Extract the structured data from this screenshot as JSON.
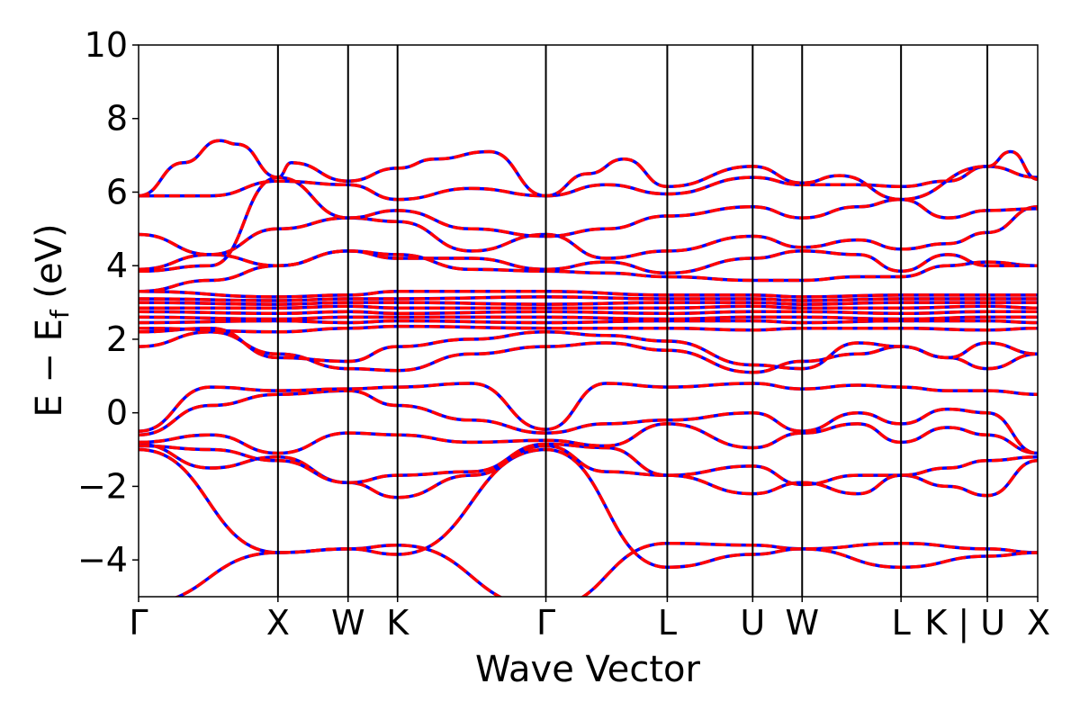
{
  "chart_data": {
    "type": "line",
    "title": "",
    "xlabel": "Wave Vector",
    "ylabel_main": "E − E",
    "ylabel_sub": "f",
    "ylabel_unit": " (eV)",
    "ylim": [
      -5,
      10
    ],
    "yticks": [
      "−4",
      "−2",
      "0",
      "2",
      "4",
      "6",
      "8",
      "10"
    ],
    "ytick_values": [
      -4,
      -2,
      0,
      2,
      4,
      6,
      8,
      10
    ],
    "xlim": [
      0,
      1
    ],
    "kpoints": [
      {
        "label": "Γ",
        "x": 0.0
      },
      {
        "label": "X",
        "x": 0.155
      },
      {
        "label": "W",
        "x": 0.233
      },
      {
        "label": "K",
        "x": 0.288
      },
      {
        "label": "Γ",
        "x": 0.453
      },
      {
        "label": "L",
        "x": 0.588
      },
      {
        "label": "U",
        "x": 0.683
      },
      {
        "label": "W",
        "x": 0.738
      },
      {
        "label": "L",
        "x": 0.848
      },
      {
        "label": "K | U",
        "x": 0.944
      },
      {
        "label": "X",
        "x": 1.0
      }
    ],
    "series_colors": {
      "dft": "#0000ff",
      "wannier": "#ff0000"
    },
    "bands": [
      {
        "x": [
          0,
          0.155,
          0.233,
          0.288,
          0.453,
          0.588,
          0.683,
          0.738,
          0.848,
          0.944,
          1.0
        ],
        "y": [
          -5.2,
          -3.8,
          -3.7,
          -3.6,
          -5.3,
          -3.55,
          -3.6,
          -3.7,
          -3.55,
          -3.7,
          -3.8
        ]
      },
      {
        "x": [
          0,
          0.155,
          0.233,
          0.288,
          0.453,
          0.588,
          0.683,
          0.738,
          0.848,
          0.944,
          1.0
        ],
        "y": [
          -1.0,
          -3.8,
          -3.7,
          -3.85,
          -1.0,
          -4.2,
          -3.85,
          -3.7,
          -4.2,
          -3.9,
          -3.8
        ]
      },
      {
        "x": [
          0,
          0.08,
          0.155,
          0.233,
          0.288,
          0.37,
          0.453,
          0.52,
          0.588,
          0.683,
          0.738,
          0.8,
          0.848,
          0.9,
          0.944,
          1.0
        ],
        "y": [
          -0.85,
          -1.5,
          -1.2,
          -1.9,
          -2.3,
          -1.7,
          -0.9,
          -1.6,
          -1.7,
          -1.45,
          -1.95,
          -1.7,
          -1.7,
          -2.0,
          -2.25,
          -1.3
        ]
      },
      {
        "x": [
          0,
          0.08,
          0.155,
          0.233,
          0.288,
          0.37,
          0.453,
          0.52,
          0.588,
          0.683,
          0.738,
          0.8,
          0.848,
          0.9,
          0.944,
          1.0
        ],
        "y": [
          -0.9,
          -1.0,
          -1.3,
          -1.9,
          -1.7,
          -1.6,
          -0.85,
          -0.95,
          -1.7,
          -2.2,
          -1.9,
          -2.2,
          -1.7,
          -1.5,
          -1.3,
          -1.2
        ]
      },
      {
        "x": [
          0,
          0.08,
          0.155,
          0.233,
          0.288,
          0.37,
          0.453,
          0.52,
          0.588,
          0.683,
          0.738,
          0.8,
          0.848,
          0.9,
          0.944,
          1.0
        ],
        "y": [
          -0.8,
          -0.6,
          -1.1,
          -0.55,
          -0.6,
          -0.8,
          -0.75,
          -0.9,
          -0.3,
          -0.95,
          -0.55,
          -0.3,
          -0.8,
          -0.4,
          -0.6,
          -1.1
        ]
      },
      {
        "x": [
          0,
          0.08,
          0.155,
          0.233,
          0.288,
          0.37,
          0.453,
          0.52,
          0.588,
          0.683,
          0.738,
          0.8,
          0.848,
          0.9,
          0.944,
          1.0
        ],
        "y": [
          -0.6,
          0.2,
          0.5,
          0.6,
          0.2,
          -0.2,
          -0.55,
          -0.3,
          -0.2,
          0.0,
          -0.5,
          0.0,
          -0.3,
          0.1,
          0.0,
          -1.1
        ]
      },
      {
        "x": [
          0,
          0.08,
          0.155,
          0.233,
          0.288,
          0.37,
          0.453,
          0.52,
          0.588,
          0.683,
          0.738,
          0.8,
          0.848,
          0.9,
          0.944,
          1.0
        ],
        "y": [
          -0.5,
          0.7,
          0.6,
          0.65,
          0.7,
          0.8,
          -0.45,
          0.8,
          0.7,
          0.8,
          0.65,
          0.75,
          0.7,
          0.6,
          0.6,
          0.5
        ]
      },
      {
        "x": [
          0,
          0.08,
          0.155,
          0.233,
          0.288,
          0.37,
          0.453,
          0.52,
          0.588,
          0.683,
          0.738,
          0.8,
          0.848,
          0.9,
          0.944,
          1.0
        ],
        "y": [
          1.8,
          2.2,
          1.6,
          1.2,
          1.15,
          1.6,
          1.8,
          1.9,
          1.7,
          1.1,
          1.4,
          1.6,
          1.8,
          1.5,
          1.2,
          1.6
        ]
      },
      {
        "x": [
          0,
          0.08,
          0.155,
          0.233,
          0.288,
          0.37,
          0.453,
          0.52,
          0.588,
          0.683,
          0.738,
          0.8,
          0.848,
          0.9,
          0.944,
          1.0
        ],
        "y": [
          2.2,
          2.3,
          1.5,
          1.4,
          1.8,
          2.0,
          2.2,
          2.1,
          1.95,
          1.3,
          1.2,
          1.9,
          1.8,
          1.5,
          1.9,
          1.6
        ]
      },
      {
        "x": [
          0,
          0.155,
          0.233,
          0.288,
          0.453,
          0.588,
          0.683,
          0.738,
          0.848,
          0.944,
          1.0
        ],
        "y": [
          2.3,
          2.2,
          2.3,
          2.35,
          2.3,
          2.3,
          2.25,
          2.3,
          2.3,
          2.25,
          2.3
        ]
      },
      {
        "x": [
          0,
          0.155,
          0.233,
          0.288,
          0.453,
          0.588,
          0.683,
          0.738,
          0.848,
          0.944,
          1.0
        ],
        "y": [
          2.45,
          2.5,
          2.45,
          2.5,
          2.45,
          2.5,
          2.5,
          2.45,
          2.5,
          2.5,
          2.45
        ]
      },
      {
        "x": [
          0,
          0.155,
          0.233,
          0.288,
          0.453,
          0.588,
          0.683,
          0.738,
          0.848,
          0.944,
          1.0
        ],
        "y": [
          2.6,
          2.55,
          2.6,
          2.6,
          2.6,
          2.55,
          2.6,
          2.6,
          2.55,
          2.6,
          2.6
        ]
      },
      {
        "x": [
          0,
          0.155,
          0.233,
          0.288,
          0.453,
          0.588,
          0.683,
          0.738,
          0.848,
          0.944,
          1.0
        ],
        "y": [
          2.75,
          2.7,
          2.75,
          2.7,
          2.75,
          2.7,
          2.75,
          2.75,
          2.7,
          2.75,
          2.75
        ]
      },
      {
        "x": [
          0,
          0.155,
          0.233,
          0.288,
          0.453,
          0.588,
          0.683,
          0.738,
          0.848,
          0.944,
          1.0
        ],
        "y": [
          2.85,
          2.85,
          2.9,
          2.85,
          2.85,
          2.85,
          2.9,
          2.85,
          2.85,
          2.9,
          2.85
        ]
      },
      {
        "x": [
          0,
          0.155,
          0.233,
          0.288,
          0.453,
          0.588,
          0.683,
          0.738,
          0.848,
          0.944,
          1.0
        ],
        "y": [
          3.0,
          2.95,
          3.0,
          3.0,
          2.95,
          3.0,
          3.0,
          2.95,
          3.0,
          3.0,
          3.0
        ]
      },
      {
        "x": [
          0,
          0.155,
          0.233,
          0.288,
          0.453,
          0.588,
          0.683,
          0.738,
          0.848,
          0.944,
          1.0
        ],
        "y": [
          3.1,
          3.05,
          3.1,
          3.1,
          3.15,
          3.1,
          3.1,
          3.05,
          3.1,
          3.1,
          3.1
        ]
      },
      {
        "x": [
          0,
          0.155,
          0.233,
          0.288,
          0.453,
          0.588,
          0.683,
          0.738,
          0.848,
          0.944,
          1.0
        ],
        "y": [
          3.3,
          3.15,
          3.2,
          3.3,
          3.3,
          3.2,
          3.2,
          3.15,
          3.2,
          3.2,
          3.2
        ]
      },
      {
        "x": [
          0,
          0.08,
          0.155,
          0.233,
          0.288,
          0.37,
          0.453,
          0.52,
          0.588,
          0.683,
          0.738,
          0.8,
          0.848,
          0.9,
          0.944,
          1.0
        ],
        "y": [
          3.3,
          3.6,
          4.0,
          4.4,
          4.3,
          3.9,
          3.85,
          3.8,
          3.7,
          3.6,
          3.6,
          3.7,
          3.7,
          4.0,
          4.1,
          4.0
        ]
      },
      {
        "x": [
          0,
          0.08,
          0.155,
          0.233,
          0.288,
          0.37,
          0.453,
          0.52,
          0.588,
          0.683,
          0.738,
          0.8,
          0.848,
          0.9,
          0.944,
          1.0
        ],
        "y": [
          3.9,
          4.3,
          4.0,
          4.4,
          4.2,
          4.2,
          3.9,
          4.1,
          3.8,
          4.2,
          4.4,
          4.3,
          3.85,
          4.3,
          4.0,
          4.0
        ]
      },
      {
        "x": [
          0,
          0.08,
          0.155,
          0.233,
          0.288,
          0.37,
          0.453,
          0.52,
          0.588,
          0.683,
          0.738,
          0.8,
          0.848,
          0.9,
          0.944,
          1.0
        ],
        "y": [
          4.85,
          4.3,
          5.0,
          5.3,
          5.2,
          4.4,
          4.85,
          4.2,
          4.4,
          4.8,
          4.5,
          4.7,
          4.45,
          4.6,
          4.9,
          5.6
        ]
      },
      {
        "x": [
          0,
          0.08,
          0.155,
          0.233,
          0.288,
          0.37,
          0.453,
          0.52,
          0.588,
          0.683,
          0.738,
          0.8,
          0.848,
          0.9,
          0.944,
          1.0
        ],
        "y": [
          3.85,
          4.0,
          6.4,
          5.3,
          5.5,
          5.0,
          4.8,
          5.0,
          5.35,
          5.6,
          5.3,
          5.6,
          5.8,
          5.3,
          5.5,
          5.55
        ]
      },
      {
        "x": [
          0,
          0.08,
          0.155,
          0.233,
          0.288,
          0.37,
          0.453,
          0.52,
          0.588,
          0.683,
          0.738,
          0.8,
          0.848,
          0.9,
          0.944,
          1.0
        ],
        "y": [
          5.9,
          5.9,
          6.3,
          6.2,
          5.8,
          6.1,
          5.9,
          6.2,
          5.95,
          6.4,
          6.2,
          6.2,
          6.15,
          6.3,
          6.7,
          6.4
        ]
      },
      {
        "x": [
          0,
          0.05,
          0.09,
          0.11,
          0.155,
          0.17,
          0.233,
          0.288,
          0.33,
          0.39,
          0.453,
          0.5,
          0.54,
          0.588,
          0.683,
          0.738,
          0.78,
          0.848,
          0.944,
          0.97,
          1.0
        ],
        "y": [
          5.9,
          6.8,
          7.4,
          7.3,
          6.4,
          6.8,
          6.3,
          6.65,
          6.9,
          7.1,
          5.9,
          6.5,
          6.9,
          6.15,
          6.7,
          6.25,
          6.45,
          5.8,
          6.7,
          7.1,
          6.35
        ]
      }
    ]
  }
}
